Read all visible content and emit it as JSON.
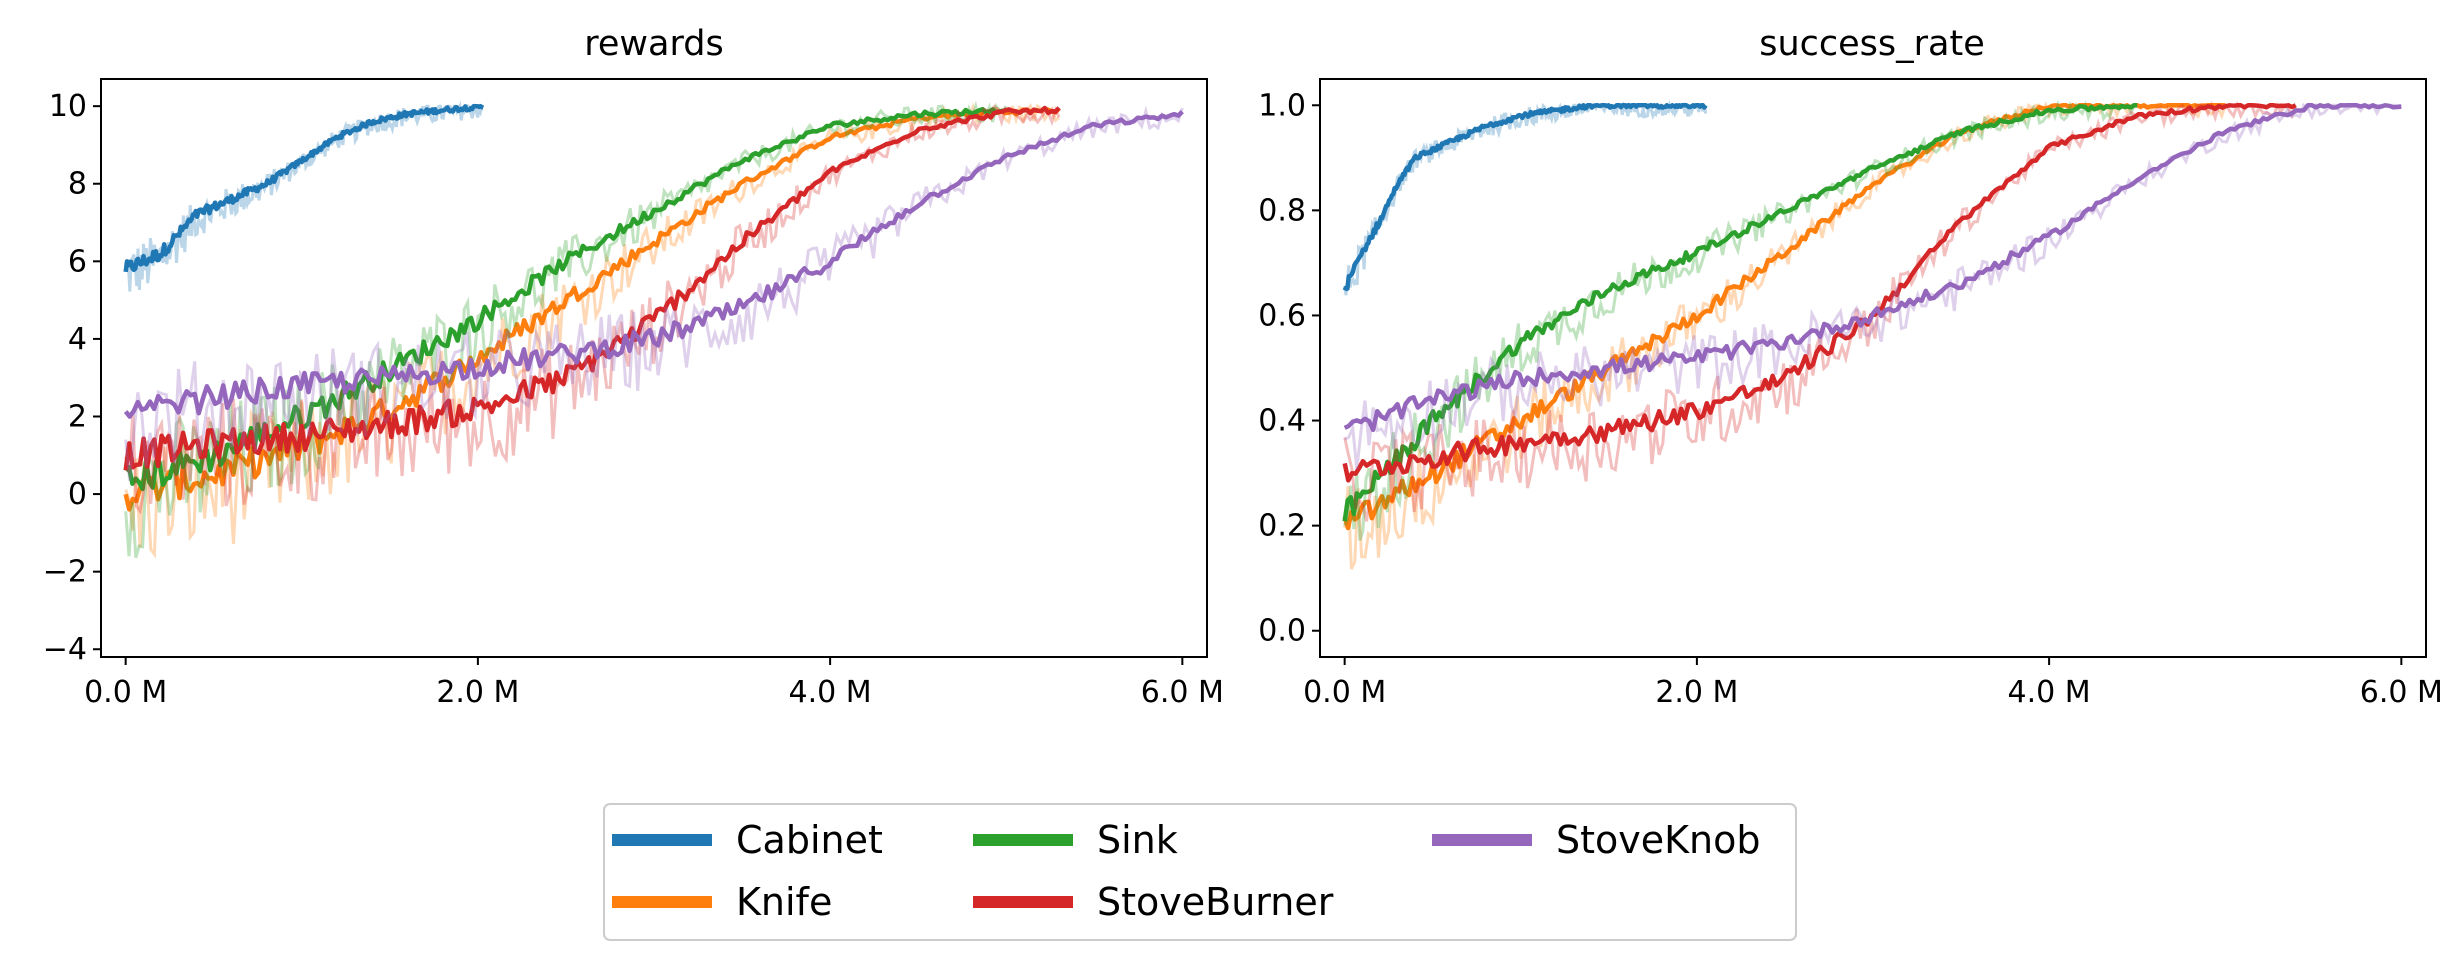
{
  "chart_data": [
    {
      "type": "line",
      "title": "rewards",
      "xlabel": "",
      "ylabel": "",
      "xlim": [
        -0.14,
        6.14
      ],
      "ylim": [
        -4.2,
        10.7
      ],
      "xticks": [
        0,
        2,
        4,
        6
      ],
      "xtick_labels": [
        "0.0 M",
        "2.0 M",
        "4.0 M",
        "6.0 M"
      ],
      "yticks": [
        -4,
        -2,
        0,
        2,
        4,
        6,
        8,
        10
      ],
      "ytick_labels": [
        "−4",
        "−2",
        "0",
        "2",
        "4",
        "6",
        "8",
        "10"
      ],
      "grid": false,
      "series": [
        {
          "name": "Cabinet",
          "x": [
            0,
            0.2,
            0.4,
            0.6,
            0.8,
            1.0,
            1.2,
            1.4,
            1.6,
            1.8,
            2.03
          ],
          "values": [
            5.8,
            6.2,
            7.2,
            7.6,
            8.0,
            8.6,
            9.2,
            9.6,
            9.8,
            9.9,
            10.0
          ]
        },
        {
          "name": "Knife",
          "x": [
            0,
            0.5,
            1.0,
            1.5,
            2.0,
            2.5,
            3.0,
            3.5,
            4.0,
            4.5,
            5.0,
            5.3
          ],
          "values": [
            0.0,
            0.5,
            1.2,
            2.2,
            3.5,
            5.0,
            6.5,
            8.0,
            9.2,
            9.7,
            9.85,
            9.9
          ]
        },
        {
          "name": "Sink",
          "x": [
            0,
            0.5,
            1.0,
            1.5,
            2.0,
            2.5,
            3.0,
            3.5,
            4.0,
            4.5,
            5.0
          ],
          "values": [
            0.3,
            1.0,
            2.0,
            3.2,
            4.5,
            6.0,
            7.3,
            8.6,
            9.5,
            9.8,
            9.9
          ]
        },
        {
          "name": "StoveBurner",
          "x": [
            0,
            0.5,
            1.0,
            1.5,
            2.0,
            2.5,
            3.0,
            3.5,
            4.0,
            4.5,
            5.0,
            5.3
          ],
          "values": [
            1.0,
            1.3,
            1.5,
            1.8,
            2.2,
            3.0,
            4.5,
            6.5,
            8.3,
            9.4,
            9.85,
            9.9
          ]
        },
        {
          "name": "StoveKnob",
          "x": [
            0,
            0.5,
            1.0,
            1.5,
            2.0,
            2.5,
            3.0,
            3.5,
            4.0,
            4.5,
            5.0,
            5.5,
            6.0
          ],
          "values": [
            2.0,
            2.5,
            2.8,
            3.0,
            3.3,
            3.6,
            4.0,
            4.8,
            6.0,
            7.5,
            8.7,
            9.5,
            9.8
          ]
        }
      ]
    },
    {
      "type": "line",
      "title": "success_rate",
      "xlabel": "",
      "ylabel": "",
      "xlim": [
        -0.14,
        6.14
      ],
      "ylim": [
        -0.05,
        1.05
      ],
      "xticks": [
        0,
        2,
        4,
        6
      ],
      "xtick_labels": [
        "0.0 M",
        "2.0 M",
        "4.0 M",
        "6.0 M"
      ],
      "yticks": [
        0.0,
        0.2,
        0.4,
        0.6,
        0.8,
        1.0
      ],
      "ytick_labels": [
        "0.0",
        "0.2",
        "0.4",
        "0.6",
        "0.8",
        "1.0"
      ],
      "grid": false,
      "series": [
        {
          "name": "Cabinet",
          "x": [
            0,
            0.1,
            0.2,
            0.3,
            0.4,
            0.6,
            0.8,
            1.0,
            1.2,
            1.4,
            2.05
          ],
          "values": [
            0.65,
            0.72,
            0.78,
            0.85,
            0.9,
            0.93,
            0.96,
            0.98,
            0.99,
            1.0,
            1.0
          ]
        },
        {
          "name": "Knife",
          "x": [
            0,
            0.5,
            1.0,
            1.5,
            2.0,
            2.5,
            3.0,
            3.5,
            4.0,
            4.5,
            5.0
          ],
          "values": [
            0.2,
            0.3,
            0.4,
            0.5,
            0.6,
            0.72,
            0.85,
            0.95,
            1.0,
            1.0,
            1.0
          ]
        },
        {
          "name": "Sink",
          "x": [
            0,
            0.5,
            1.0,
            1.5,
            2.0,
            2.5,
            3.0,
            3.5,
            4.0,
            4.5
          ],
          "values": [
            0.22,
            0.4,
            0.55,
            0.65,
            0.72,
            0.8,
            0.88,
            0.95,
            0.99,
            1.0
          ]
        },
        {
          "name": "StoveBurner",
          "x": [
            0,
            0.5,
            1.0,
            1.5,
            2.0,
            2.5,
            3.0,
            3.5,
            4.0,
            4.5,
            5.0,
            5.4
          ],
          "values": [
            0.3,
            0.33,
            0.36,
            0.38,
            0.42,
            0.48,
            0.6,
            0.78,
            0.92,
            0.98,
            1.0,
            1.0
          ]
        },
        {
          "name": "StoveKnob",
          "x": [
            0,
            0.5,
            1.0,
            1.5,
            2.0,
            2.5,
            3.0,
            3.5,
            4.0,
            4.5,
            5.0,
            5.5,
            6.0
          ],
          "values": [
            0.38,
            0.44,
            0.48,
            0.5,
            0.52,
            0.55,
            0.6,
            0.66,
            0.75,
            0.86,
            0.95,
            1.0,
            1.0
          ]
        }
      ]
    }
  ],
  "legend": {
    "placement": "bottom-center",
    "entries": [
      {
        "name": "Cabinet",
        "color": "#1f77b4"
      },
      {
        "name": "Knife",
        "color": "#ff7f0e"
      },
      {
        "name": "Sink",
        "color": "#2ca02c"
      },
      {
        "name": "StoveBurner",
        "color": "#d62728"
      },
      {
        "name": "StoveKnob",
        "color": "#9467bd"
      }
    ]
  },
  "colors": {
    "Cabinet": "#1f77b4",
    "Knife": "#ff7f0e",
    "Sink": "#2ca02c",
    "StoveBurner": "#d62728",
    "StoveKnob": "#9467bd"
  }
}
